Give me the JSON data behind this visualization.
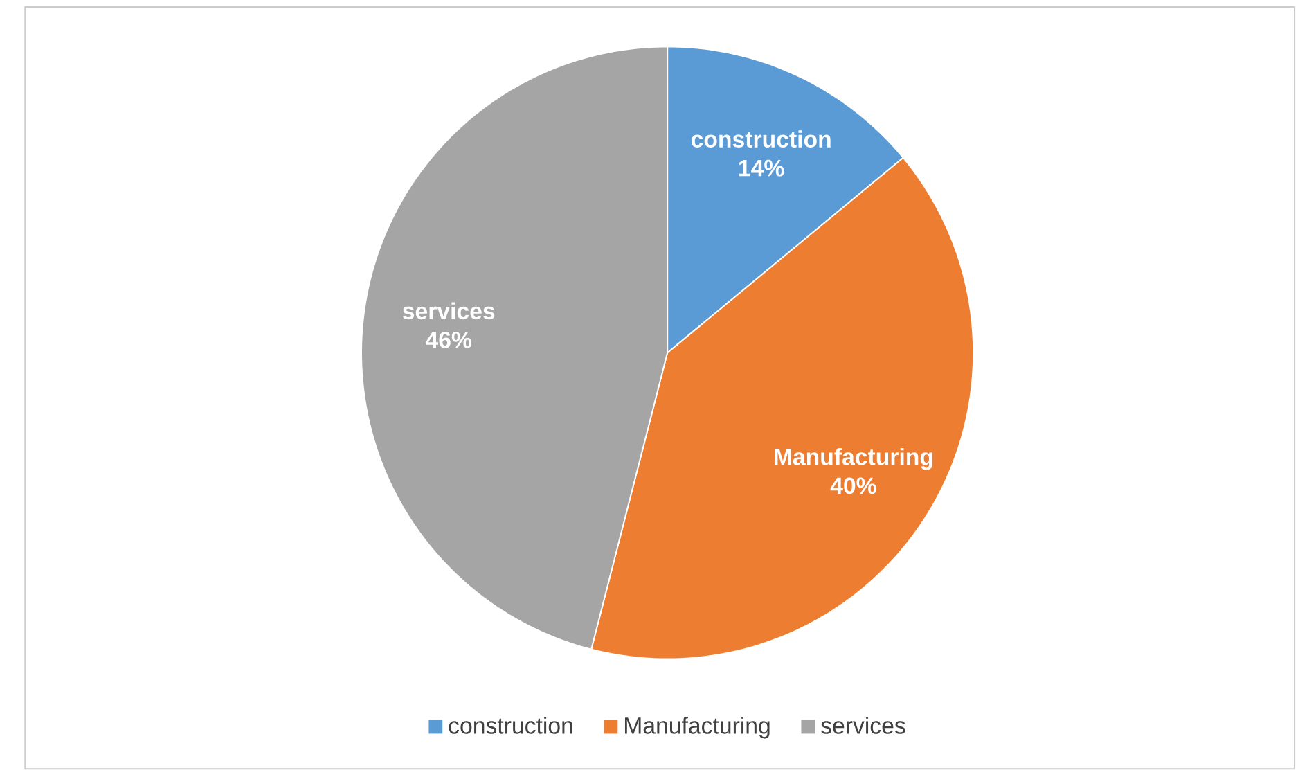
{
  "chart_data": {
    "type": "pie",
    "categories": [
      "construction",
      "Manufacturing",
      "services"
    ],
    "values": [
      14,
      40,
      46
    ],
    "colors": [
      "#5b9bd5",
      "#ed7d31",
      "#a5a5a5"
    ],
    "value_labels": [
      "14%",
      "40%",
      "46%"
    ],
    "legend": "bottom"
  }
}
